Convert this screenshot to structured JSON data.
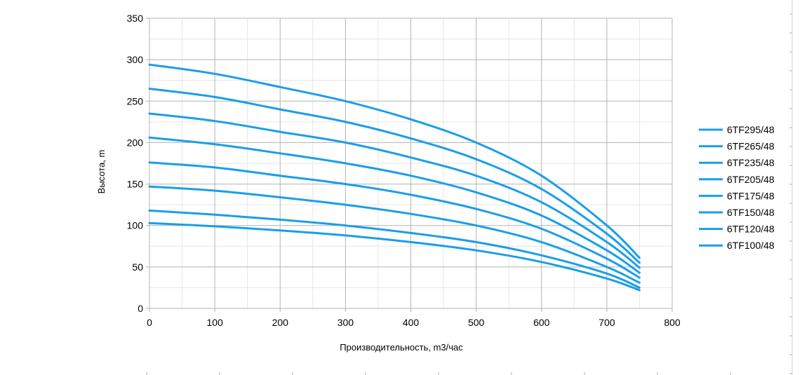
{
  "chart_data": {
    "type": "line",
    "xlabel": "Производительность, m3/час",
    "ylabel": "Высота, m",
    "xlim": [
      0,
      800
    ],
    "ylim": [
      0,
      350
    ],
    "x_ticks": [
      "0",
      "100",
      "200",
      "300",
      "400",
      "500",
      "600",
      "700",
      "800"
    ],
    "y_ticks": [
      "0",
      "50",
      "100",
      "150",
      "200",
      "250",
      "300",
      "350"
    ],
    "grid": true,
    "minor_grid": true,
    "legend_position": "right",
    "line_color": "#1a9ee8",
    "x": [
      0,
      100,
      200,
      300,
      400,
      500,
      600,
      700,
      750
    ],
    "series": [
      {
        "name": "6TF295/48",
        "values": [
          294,
          283,
          267,
          250,
          228,
          200,
          160,
          100,
          61
        ]
      },
      {
        "name": "6TF265/48",
        "values": [
          265,
          255,
          240,
          225,
          205,
          180,
          144,
          90,
          55
        ]
      },
      {
        "name": "6TF235/48",
        "values": [
          235,
          226,
          213,
          200,
          182,
          160,
          128,
          80,
          49
        ]
      },
      {
        "name": "6TF205/48",
        "values": [
          206,
          198,
          187,
          175,
          160,
          140,
          112,
          70,
          43
        ]
      },
      {
        "name": "6TF175/48",
        "values": [
          176,
          170,
          160,
          150,
          137,
          120,
          96,
          60,
          37
        ]
      },
      {
        "name": "6TF150/48",
        "values": [
          147,
          142,
          134,
          125,
          114,
          100,
          80,
          50,
          31
        ]
      },
      {
        "name": "6TF120/48",
        "values": [
          118,
          113,
          107,
          100,
          91,
          80,
          64,
          42,
          25
        ]
      },
      {
        "name": "6TF100/48",
        "values": [
          103,
          99,
          94,
          88,
          80,
          70,
          56,
          36,
          22
        ]
      }
    ]
  }
}
